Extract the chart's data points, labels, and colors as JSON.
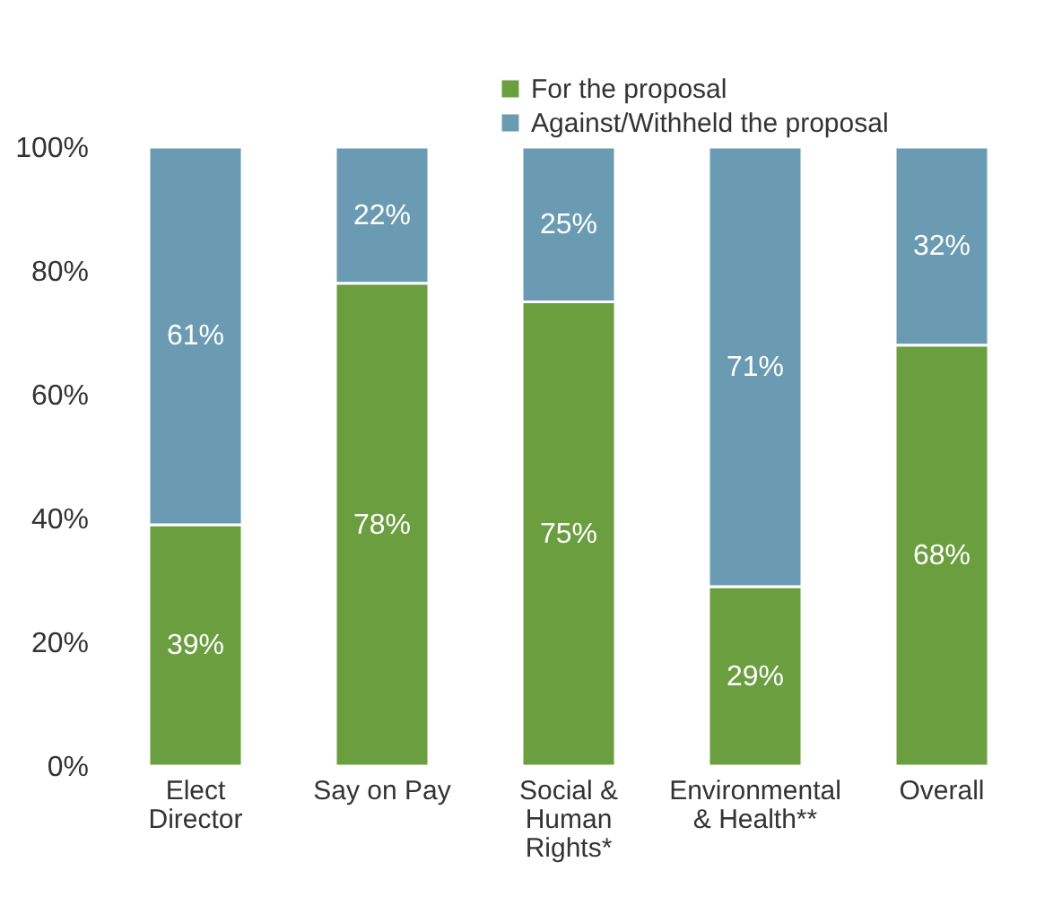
{
  "chart_data": {
    "type": "bar",
    "stacked": true,
    "categories": [
      "Elect Director",
      "Say on Pay",
      "Social & Human Rights*",
      "Environmental & Health**",
      "Overall"
    ],
    "series": [
      {
        "name": "For the proposal",
        "color": "#6a9e3f",
        "values": [
          39,
          78,
          75,
          29,
          68
        ],
        "value_labels": [
          "39%",
          "78%",
          "75%",
          "29%",
          "68%"
        ]
      },
      {
        "name": "Against/Withheld the proposal",
        "color": "#6a9bb3",
        "values": [
          61,
          22,
          25,
          71,
          32
        ],
        "value_labels": [
          "61%",
          "22%",
          "25%",
          "71%",
          "32%"
        ]
      }
    ],
    "ylim": [
      0,
      100
    ],
    "yticks": [
      {
        "value": 0,
        "label": "0%"
      },
      {
        "value": 20,
        "label": "20%"
      },
      {
        "value": 40,
        "label": "40%"
      },
      {
        "value": 60,
        "label": "60%"
      },
      {
        "value": 80,
        "label": "80%"
      },
      {
        "value": 100,
        "label": "100%"
      }
    ],
    "grid": false,
    "legend": "top right"
  }
}
